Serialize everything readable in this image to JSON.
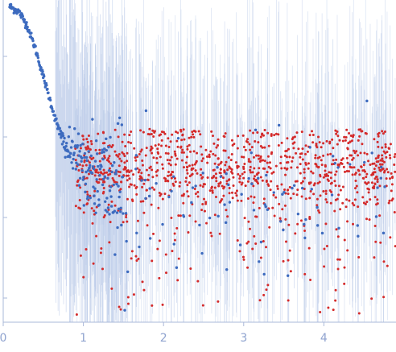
{
  "chart_data": {
    "type": "scatter",
    "title": "",
    "xlabel": "",
    "ylabel": "",
    "xlim": [
      0,
      4.9
    ],
    "ylim": [
      -0.3,
      3.7
    ],
    "y_scale": "log",
    "x_ticks": [
      0,
      1,
      2,
      3,
      4
    ],
    "x_tick_labels": [
      "0",
      "1",
      "2",
      "3",
      "4"
    ],
    "y_ticks": [
      0,
      1,
      2,
      3
    ],
    "y_tick_labels": [
      "",
      "",
      "",
      ""
    ],
    "grid": false,
    "legend": "none",
    "colors": {
      "used_points": "#3d6bbf",
      "excluded_points": "#d42a2a",
      "error_bars": "#b8c8e8",
      "axis": "#aab8d8",
      "tick_labels": "#8fa3cf"
    },
    "series": [
      {
        "role": "used",
        "values_sample": [
          {
            "x": 0.08,
            "y": 3.62
          },
          {
            "x": 0.2,
            "y": 3.55
          },
          {
            "x": 0.3,
            "y": 3.38
          },
          {
            "x": 0.4,
            "y": 3.1
          },
          {
            "x": 0.5,
            "y": 2.75
          },
          {
            "x": 0.6,
            "y": 2.4
          },
          {
            "x": 0.7,
            "y": 2.05
          },
          {
            "x": 0.8,
            "y": 1.85
          },
          {
            "x": 0.9,
            "y": 1.75
          },
          {
            "x": 1.0,
            "y": 1.65
          },
          {
            "x": 1.2,
            "y": 1.5
          },
          {
            "x": 1.4,
            "y": 1.4
          }
        ]
      },
      {
        "role": "excluded",
        "level_y": 1.65,
        "x_range": [
          0.9,
          4.9
        ]
      }
    ]
  }
}
